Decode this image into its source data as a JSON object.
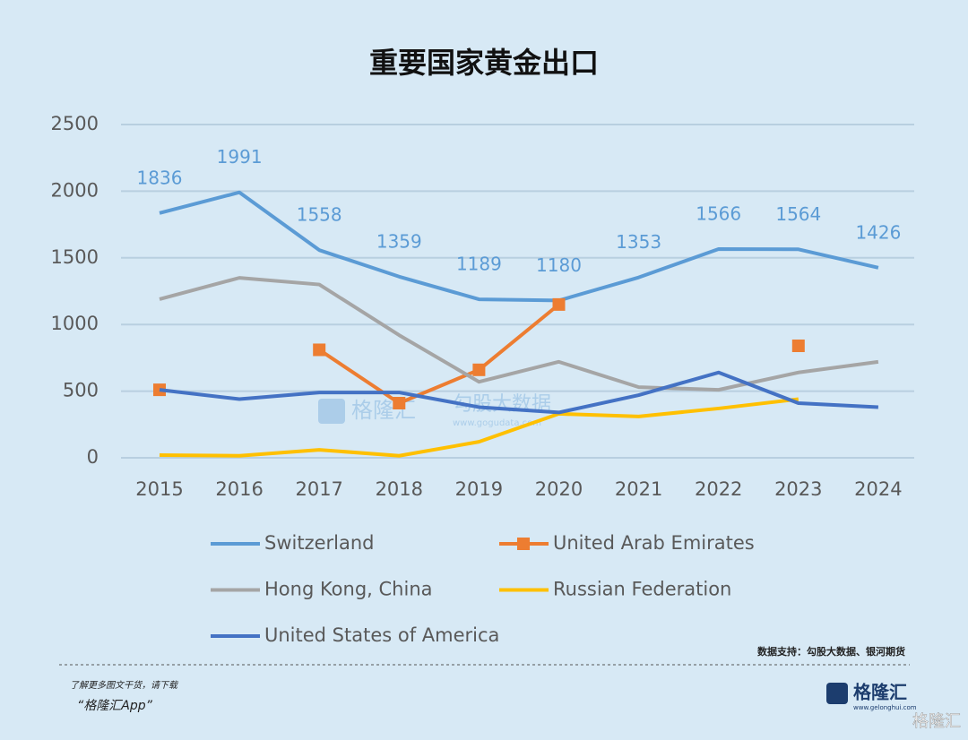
{
  "chart_data": {
    "type": "line",
    "title": "重要国家黄金出口",
    "categories": [
      "2015",
      "2016",
      "2017",
      "2018",
      "2019",
      "2020",
      "2021",
      "2022",
      "2023",
      "2024"
    ],
    "ylim": [
      0,
      2500
    ],
    "yticks": [
      0,
      500,
      1000,
      1500,
      2000,
      2500
    ],
    "grid": true,
    "series": [
      {
        "name": "Switzerland",
        "color": "#5b9bd5",
        "values": [
          1836,
          1991,
          1558,
          1359,
          1189,
          1180,
          1353,
          1566,
          1564,
          1426
        ],
        "data_labels": true
      },
      {
        "name": "United Arab Emirates",
        "color": "#ed7d31",
        "marker": "square",
        "values": [
          510,
          null,
          810,
          410,
          660,
          1150,
          null,
          null,
          840,
          null
        ]
      },
      {
        "name": "Hong Kong, China",
        "color": "#a5a5a5",
        "values": [
          1190,
          1350,
          1300,
          920,
          570,
          720,
          530,
          510,
          640,
          720
        ]
      },
      {
        "name": "Russian Federation",
        "color": "#ffc000",
        "values": [
          20,
          15,
          60,
          15,
          120,
          330,
          310,
          370,
          440,
          null
        ]
      },
      {
        "name": "United States of America",
        "color": "#4472c4",
        "values": [
          510,
          440,
          490,
          490,
          380,
          340,
          470,
          640,
          410,
          380
        ]
      }
    ]
  },
  "source": "数据支持：勾股大数据、银河期货",
  "watermark": {
    "brand": "格隆汇",
    "name": "勾股大数据",
    "url": "www.gogudata.com"
  },
  "footer": {
    "line1": "了解更多图文干货，请下载",
    "app": "“格隆汇App”",
    "logo": "格隆汇",
    "logo_url": "www.gelonghui.com",
    "corner": "格隆汇"
  }
}
